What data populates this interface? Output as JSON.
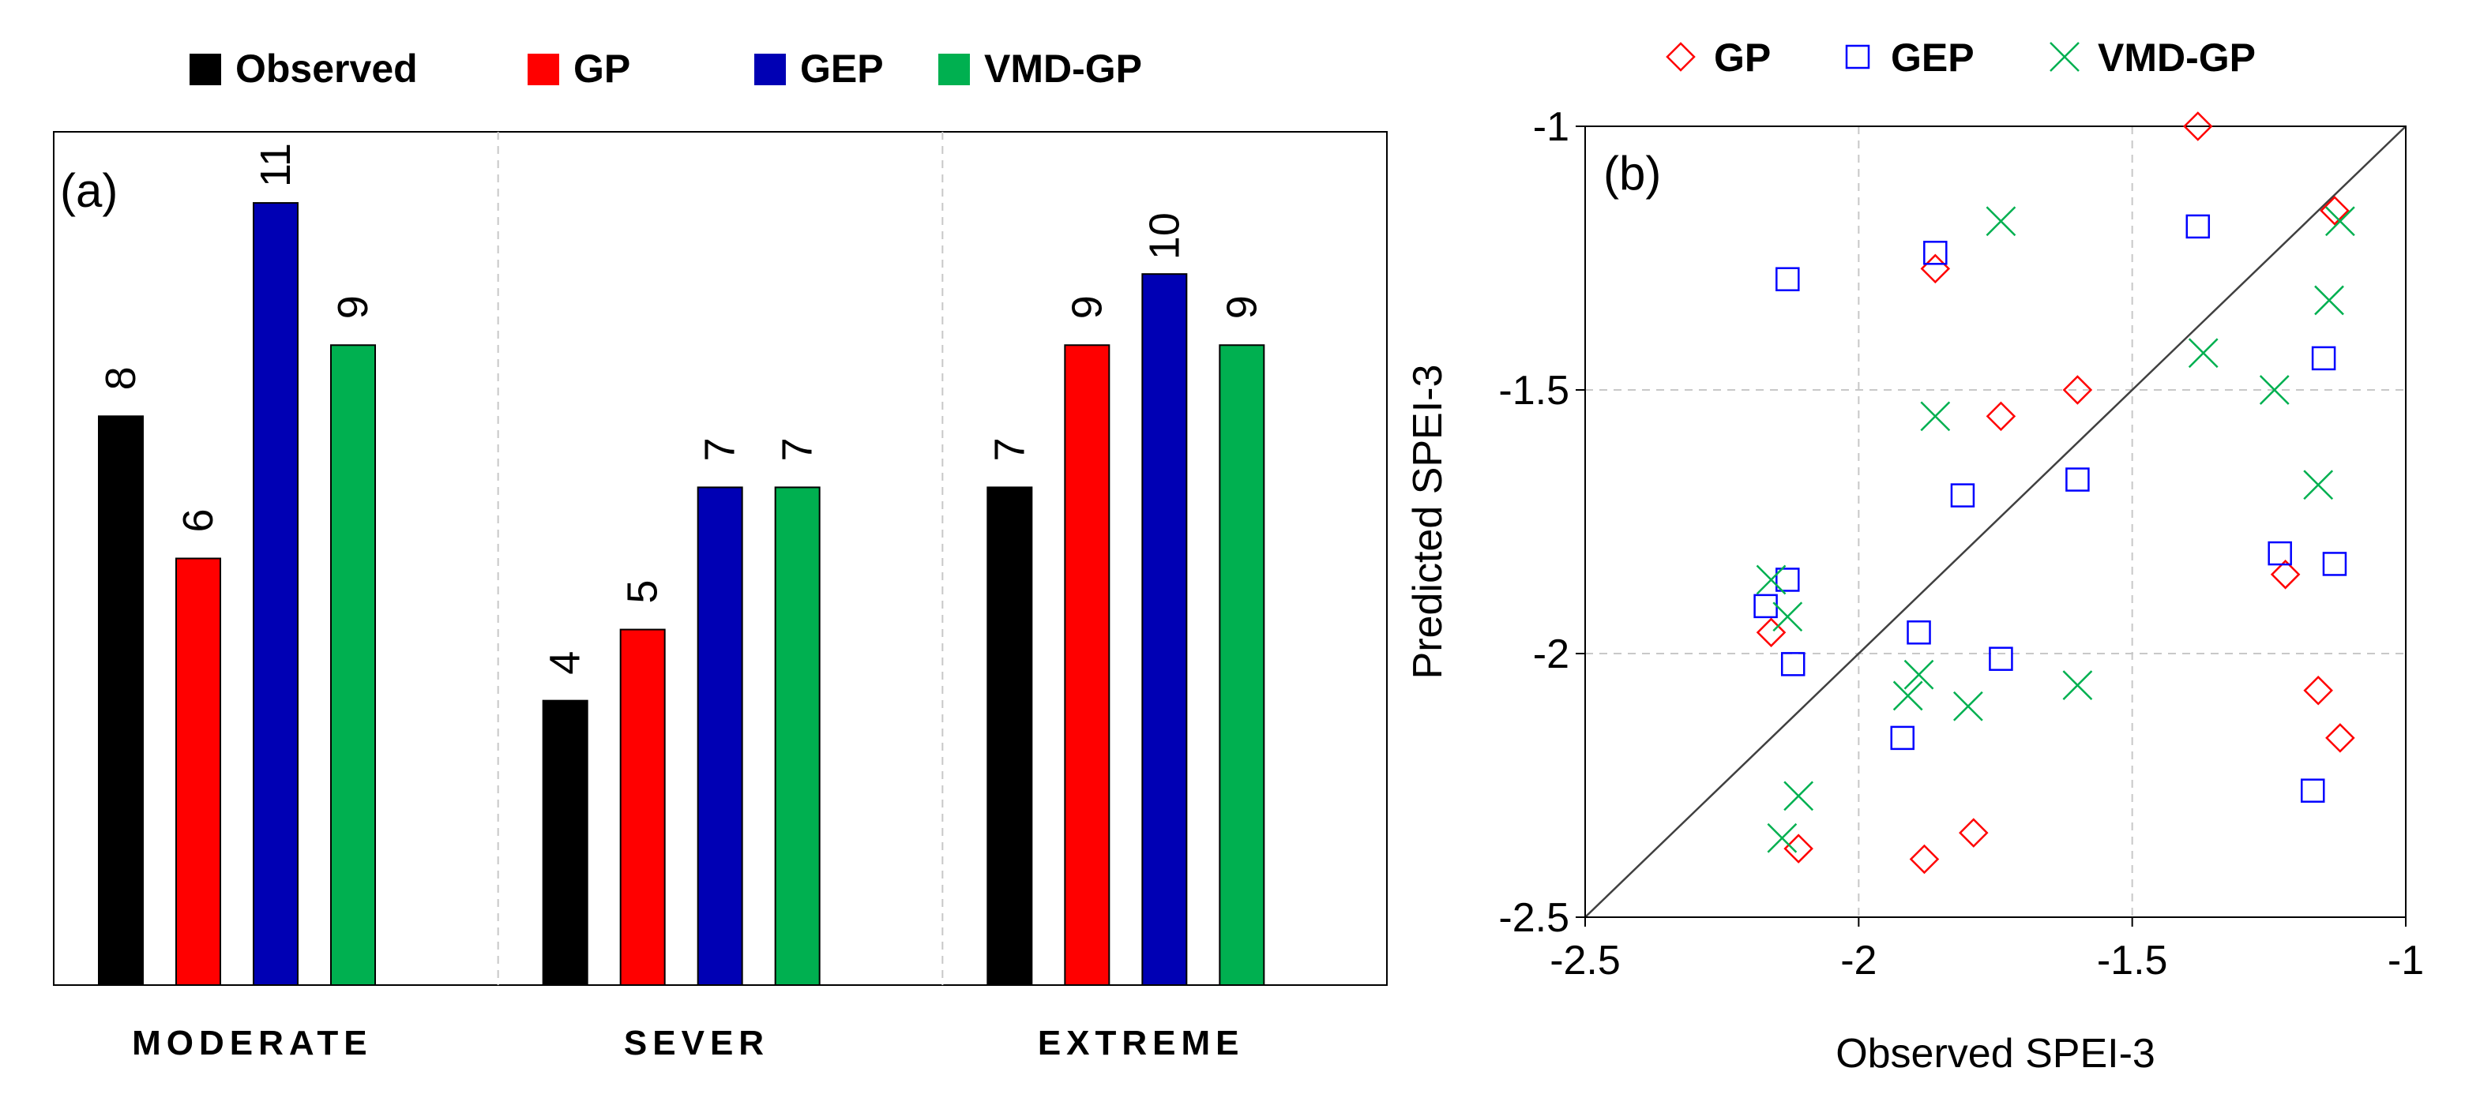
{
  "chart_data": [
    {
      "type": "bar",
      "panel_label": "(a)",
      "categories": [
        "MODERATE",
        "SEVER",
        "EXTREME"
      ],
      "series": [
        {
          "name": "Observed",
          "color": "#000000",
          "values": [
            8,
            4,
            7
          ]
        },
        {
          "name": "GP",
          "color": "#ff0000",
          "values": [
            6,
            5,
            9
          ]
        },
        {
          "name": "GEP",
          "color": "#0000b4",
          "values": [
            11,
            7,
            10
          ]
        },
        {
          "name": "VMD-GP",
          "color": "#00b050",
          "values": [
            9,
            7,
            9
          ]
        }
      ],
      "ylim": [
        0,
        12
      ],
      "legend": "top",
      "grid": "vertical separators dashed"
    },
    {
      "type": "scatter",
      "panel_label": "(b)",
      "xlabel": "Observed SPEI-3",
      "ylabel": "Predicted SPEI-3",
      "xlim": [
        -2.5,
        -1
      ],
      "ylim": [
        -2.5,
        -1
      ],
      "xticks": [
        "-2.5",
        "-2",
        "-1.5",
        "-1"
      ],
      "yticks": [
        "-2.5",
        "-2",
        "-1.5",
        "-1"
      ],
      "reference_line": "1:1",
      "legend": "top",
      "series": [
        {
          "name": "GP",
          "marker": "diamond",
          "color": "#ff0000",
          "x": [
            -1.38,
            -1.13,
            -1.86,
            -1.6,
            -1.74,
            -1.22,
            -2.16,
            -1.16,
            -1.12,
            -2.11,
            -1.79,
            -1.88
          ],
          "y": [
            -1.0,
            -1.16,
            -1.27,
            -1.5,
            -1.55,
            -1.85,
            -1.96,
            -2.07,
            -2.16,
            -2.37,
            -2.34,
            -2.39
          ]
        },
        {
          "name": "GEP",
          "marker": "square",
          "color": "#0000ff",
          "x": [
            -1.38,
            -2.13,
            -1.86,
            -1.15,
            -1.6,
            -1.81,
            -1.23,
            -1.13,
            -2.13,
            -2.17,
            -1.89,
            -2.12,
            -1.74,
            -1.92,
            -1.17
          ],
          "y": [
            -1.19,
            -1.29,
            -1.24,
            -1.44,
            -1.67,
            -1.7,
            -1.81,
            -1.83,
            -1.86,
            -1.91,
            -1.96,
            -2.02,
            -2.01,
            -2.16,
            -2.26
          ]
        },
        {
          "name": "VMD-GP",
          "marker": "x",
          "color": "#00b050",
          "x": [
            -1.74,
            -1.12,
            -1.14,
            -1.37,
            -1.24,
            -1.86,
            -1.16,
            -2.16,
            -2.13,
            -1.89,
            -1.91,
            -1.8,
            -1.6,
            -2.11,
            -2.14
          ],
          "y": [
            -1.18,
            -1.18,
            -1.33,
            -1.43,
            -1.5,
            -1.55,
            -1.68,
            -1.86,
            -1.93,
            -2.04,
            -2.08,
            -2.1,
            -2.06,
            -2.27,
            -2.35
          ]
        }
      ]
    }
  ]
}
